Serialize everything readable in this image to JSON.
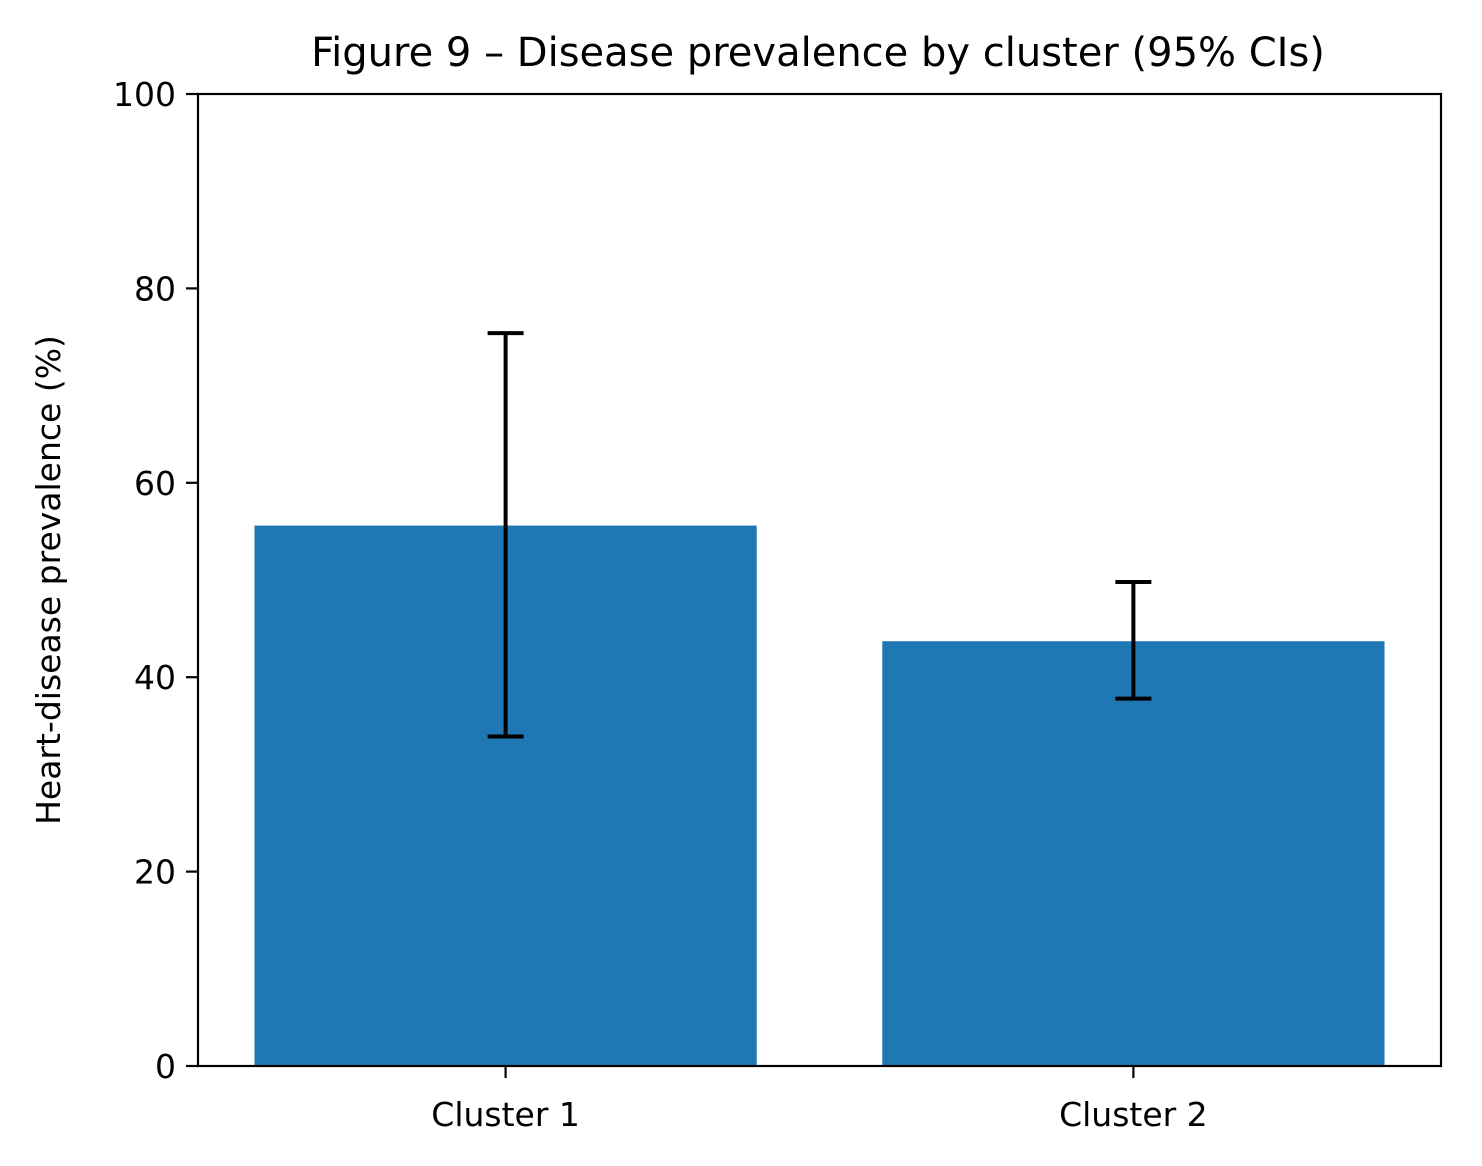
{
  "chart_data": {
    "type": "bar",
    "title": "Figure 9 – Disease prevalence by cluster (95% CIs)",
    "xlabel": "",
    "ylabel": "Heart-disease prevalence (%)",
    "categories": [
      "Cluster 1",
      "Cluster 2"
    ],
    "values": [
      55.6,
      43.7
    ],
    "ci_lower": [
      33.9,
      37.8
    ],
    "ci_upper": [
      75.4,
      49.8
    ],
    "ylim": [
      0,
      100
    ],
    "yticks": [
      "0",
      "20",
      "40",
      "60",
      "80",
      "100"
    ],
    "grid": false,
    "bar_color": "#1f77b4",
    "errorbar_color": "#000000"
  }
}
